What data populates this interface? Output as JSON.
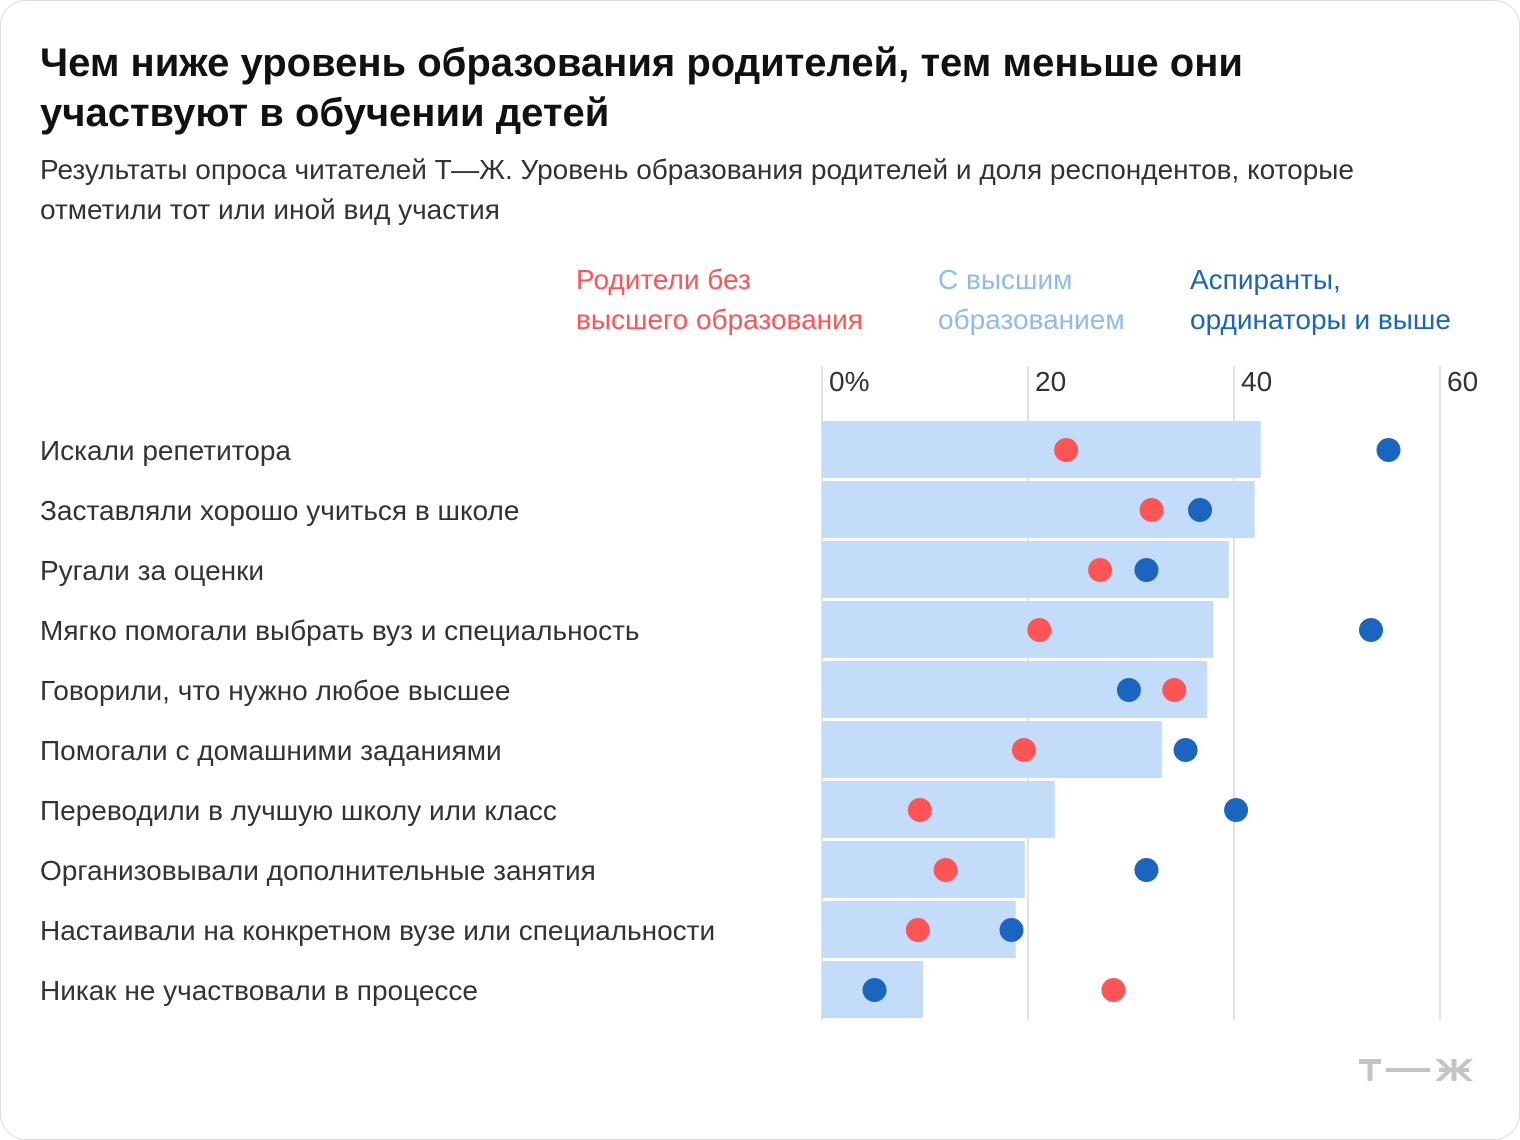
{
  "title": "Чем ниже уровень образования родителей, тем меньше они участвуют в обучении детей",
  "subtitle": "Результаты опроса читателей Т—Ж. Уровень образования родителей и доля респондентов, которые отметили тот или иной вид участия",
  "legend": {
    "no_higher": {
      "line1": "Родители без",
      "line2": "высшего образования"
    },
    "higher": {
      "line1": "С высшим",
      "line2": "образованием"
    },
    "postgrad": {
      "line1": "Аспиранты,",
      "line2": "ординаторы и выше"
    }
  },
  "colors": {
    "no_higher": "#ff5454",
    "higher": "#c2dcf9",
    "higher_text": "#8fbcf0",
    "postgrad": "#1a65c0",
    "grid": "#d8d8d8",
    "logo": "#c4c4c4"
  },
  "logo_icon": "tzh-logo-icon",
  "chart_data": {
    "type": "dot-bar",
    "title": "Чем ниже уровень образования родителей, тем меньше они участвуют в обучении детей",
    "unit": "%",
    "xlim": [
      0,
      60
    ],
    "ticks": [
      {
        "value": 0,
        "label": "0%"
      },
      {
        "value": 20,
        "label": "20"
      },
      {
        "value": 40,
        "label": "40"
      },
      {
        "value": 60,
        "label": "60"
      }
    ],
    "categories": [
      "Искали репетитора",
      "Заставляли хорошо учиться в школе",
      "Ругали за оценки",
      "Мягко помогали выбрать вуз и специальность",
      "Говорили, что нужно любое высшее",
      "Помогали с домашними заданиями",
      "Переводили в лучшую школу или класс",
      "Организовывали дополнительные занятия",
      "Настаивали на конкретном вузе или специальности",
      "Никак не участвовали в процессе"
    ],
    "series": [
      {
        "name": "С высшим образованием",
        "mark": "bar",
        "values": [
          42.6,
          42,
          39.5,
          38,
          37.4,
          33,
          22.6,
          19.7,
          18.8,
          9.8
        ]
      },
      {
        "name": "Родители без высшего образования",
        "mark": "dot",
        "values": [
          23.7,
          32,
          27,
          21.1,
          34.2,
          19.6,
          9.5,
          12,
          9.3,
          28.3
        ]
      },
      {
        "name": "Аспиранты, ординаторы и выше",
        "mark": "dot",
        "values": [
          55,
          36.7,
          31.5,
          53.3,
          29.8,
          35.3,
          40.2,
          31.5,
          18.4,
          5.1
        ]
      }
    ]
  }
}
